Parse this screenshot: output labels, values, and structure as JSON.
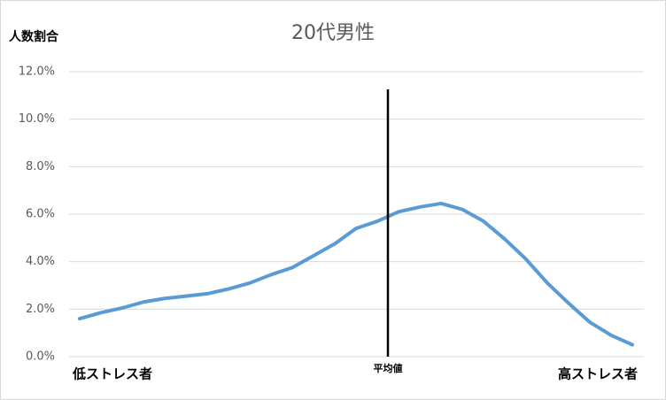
{
  "chart_data": {
    "type": "line",
    "title": "20代男性",
    "y_label": "人数割合",
    "categories": [
      "低ストレス者",
      null,
      null,
      null,
      null,
      null,
      null,
      null,
      null,
      null,
      null,
      null,
      null,
      null,
      null,
      null,
      null,
      null,
      null,
      null,
      null,
      null,
      null,
      null,
      null,
      null,
      "高ストレス者"
    ],
    "series": [
      {
        "name": "20代男性",
        "color": "#5b9bd5",
        "values": [
          1.6,
          1.85,
          2.05,
          2.3,
          2.45,
          2.55,
          2.65,
          2.85,
          3.1,
          3.45,
          3.75,
          4.25,
          4.75,
          5.4,
          5.7,
          6.1,
          6.3,
          6.45,
          6.2,
          5.7,
          4.95,
          4.1,
          3.1,
          2.25,
          1.45,
          0.9,
          0.5
        ]
      }
    ],
    "mean_line": {
      "label": "平均値",
      "x": 14.5,
      "color": "#000000"
    },
    "ylim": [
      0,
      12
    ],
    "yticks": [
      {
        "value": 0,
        "label": "0.0%"
      },
      {
        "value": 2,
        "label": "2.0%"
      },
      {
        "value": 4,
        "label": "4.0%"
      },
      {
        "value": 6,
        "label": "6.0%"
      },
      {
        "value": 8,
        "label": "8.0%"
      },
      {
        "value": 10,
        "label": "10.0%"
      },
      {
        "value": 12,
        "label": "12.0%"
      }
    ],
    "grid": true
  }
}
